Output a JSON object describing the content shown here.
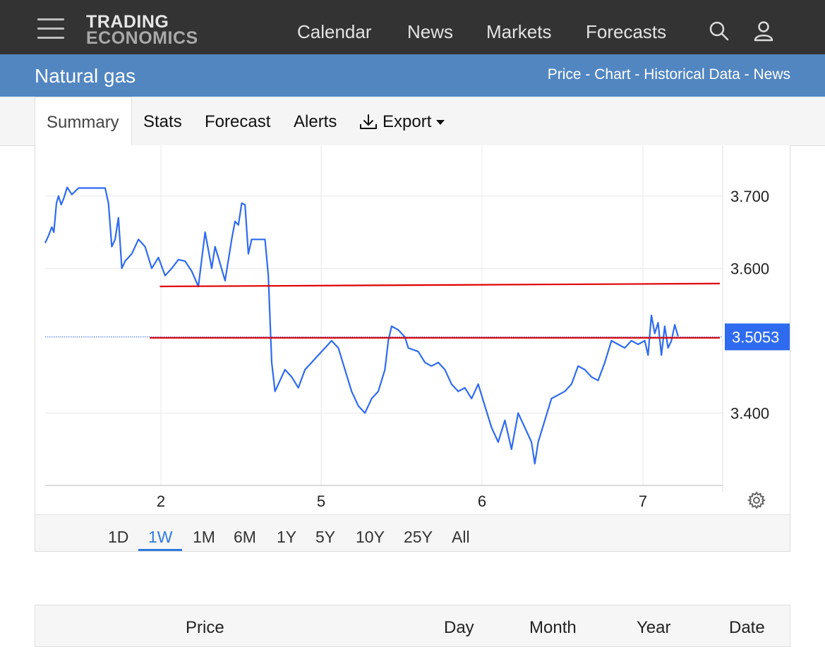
{
  "header": {
    "logo_line1": "TRADING",
    "logo_line2": "ECONOMICS",
    "nav": [
      "Calendar",
      "News",
      "Markets",
      "Forecasts"
    ],
    "icons": [
      "menu-icon",
      "search-icon",
      "user-icon"
    ]
  },
  "subheader": {
    "title": "Natural gas",
    "links": [
      "Price",
      "Chart",
      "Historical Data",
      "News"
    ],
    "separator": " - "
  },
  "tabs": {
    "active": "Summary",
    "items": [
      "Stats",
      "Forecast",
      "Alerts"
    ],
    "export_label": "Export"
  },
  "chart_data": {
    "type": "line",
    "title": "",
    "xlabel": "",
    "ylabel": "",
    "x_ticks": [
      "2",
      "5",
      "6",
      "7"
    ],
    "y_ticks": [
      "3.700",
      "3.600",
      "3.400"
    ],
    "ylim": [
      3.3,
      3.77
    ],
    "last_value": "3.5053",
    "series": [
      {
        "color": "#2f6bf0",
        "points": [
          [
            0.0,
            3.635
          ],
          [
            0.005,
            3.645
          ],
          [
            0.01,
            3.657
          ],
          [
            0.013,
            3.65
          ],
          [
            0.017,
            3.69
          ],
          [
            0.02,
            3.7
          ],
          [
            0.024,
            3.688
          ],
          [
            0.028,
            3.697
          ],
          [
            0.033,
            3.712
          ],
          [
            0.04,
            3.702
          ],
          [
            0.05,
            3.711
          ],
          [
            0.09,
            3.711
          ],
          [
            0.095,
            3.69
          ],
          [
            0.1,
            3.63
          ],
          [
            0.105,
            3.64
          ],
          [
            0.11,
            3.67
          ],
          [
            0.115,
            3.6
          ],
          [
            0.12,
            3.61
          ],
          [
            0.13,
            3.62
          ],
          [
            0.14,
            3.64
          ],
          [
            0.15,
            3.63
          ],
          [
            0.16,
            3.6
          ],
          [
            0.17,
            3.615
          ],
          [
            0.18,
            3.59
          ],
          [
            0.19,
            3.6
          ],
          [
            0.2,
            3.612
          ],
          [
            0.21,
            3.61
          ],
          [
            0.22,
            3.596
          ],
          [
            0.23,
            3.575
          ],
          [
            0.24,
            3.65
          ],
          [
            0.25,
            3.6
          ],
          [
            0.255,
            3.63
          ],
          [
            0.26,
            3.615
          ],
          [
            0.27,
            3.583
          ],
          [
            0.28,
            3.64
          ],
          [
            0.285,
            3.665
          ],
          [
            0.29,
            3.66
          ],
          [
            0.295,
            3.69
          ],
          [
            0.3,
            3.688
          ],
          [
            0.305,
            3.62
          ],
          [
            0.31,
            3.64
          ],
          [
            0.33,
            3.64
          ],
          [
            0.335,
            3.59
          ],
          [
            0.34,
            3.47
          ],
          [
            0.345,
            3.43
          ],
          [
            0.36,
            3.46
          ],
          [
            0.37,
            3.45
          ],
          [
            0.38,
            3.435
          ],
          [
            0.39,
            3.46
          ],
          [
            0.4,
            3.47
          ],
          [
            0.41,
            3.48
          ],
          [
            0.42,
            3.49
          ],
          [
            0.43,
            3.5
          ],
          [
            0.44,
            3.49
          ],
          [
            0.45,
            3.46
          ],
          [
            0.46,
            3.43
          ],
          [
            0.47,
            3.41
          ],
          [
            0.48,
            3.4
          ],
          [
            0.49,
            3.42
          ],
          [
            0.5,
            3.43
          ],
          [
            0.51,
            3.46
          ],
          [
            0.515,
            3.5
          ],
          [
            0.52,
            3.52
          ],
          [
            0.53,
            3.515
          ],
          [
            0.54,
            3.505
          ],
          [
            0.545,
            3.49
          ],
          [
            0.56,
            3.485
          ],
          [
            0.57,
            3.47
          ],
          [
            0.58,
            3.465
          ],
          [
            0.59,
            3.47
          ],
          [
            0.6,
            3.46
          ],
          [
            0.61,
            3.44
          ],
          [
            0.62,
            3.43
          ],
          [
            0.63,
            3.435
          ],
          [
            0.64,
            3.42
          ],
          [
            0.65,
            3.44
          ],
          [
            0.66,
            3.41
          ],
          [
            0.67,
            3.38
          ],
          [
            0.68,
            3.36
          ],
          [
            0.69,
            3.39
          ],
          [
            0.7,
            3.35
          ],
          [
            0.71,
            3.4
          ],
          [
            0.72,
            3.38
          ],
          [
            0.73,
            3.36
          ],
          [
            0.735,
            3.33
          ],
          [
            0.74,
            3.36
          ],
          [
            0.75,
            3.39
          ],
          [
            0.76,
            3.42
          ],
          [
            0.77,
            3.425
          ],
          [
            0.78,
            3.43
          ],
          [
            0.79,
            3.44
          ],
          [
            0.8,
            3.465
          ],
          [
            0.81,
            3.46
          ],
          [
            0.82,
            3.45
          ],
          [
            0.83,
            3.445
          ],
          [
            0.84,
            3.47
          ],
          [
            0.85,
            3.5
          ],
          [
            0.86,
            3.495
          ],
          [
            0.87,
            3.49
          ],
          [
            0.88,
            3.5
          ],
          [
            0.89,
            3.495
          ],
          [
            0.9,
            3.5
          ],
          [
            0.905,
            3.48
          ],
          [
            0.91,
            3.535
          ],
          [
            0.915,
            3.51
          ],
          [
            0.92,
            3.525
          ],
          [
            0.925,
            3.48
          ],
          [
            0.93,
            3.52
          ],
          [
            0.935,
            3.49
          ],
          [
            0.94,
            3.5
          ],
          [
            0.945,
            3.522
          ],
          [
            0.95,
            3.506
          ]
        ]
      }
    ],
    "resistance_line": [
      [
        0.17,
        3.575
      ],
      [
        1.0,
        3.579
      ]
    ],
    "support_line": [
      [
        0.155,
        3.504
      ],
      [
        1.0,
        3.504
      ]
    ]
  },
  "ranges": {
    "items": [
      "1D",
      "1W",
      "1M",
      "6M",
      "1Y",
      "5Y",
      "10Y",
      "25Y",
      "All"
    ],
    "active": "1W"
  },
  "table": {
    "headers": [
      "Price",
      "Day",
      "Month",
      "Year",
      "Date"
    ]
  },
  "colors": {
    "topbar": "#333333",
    "subbar": "#5186c1",
    "line": "#2f6bf0",
    "trend": "#e00000",
    "badge": "#2f6bf0"
  }
}
